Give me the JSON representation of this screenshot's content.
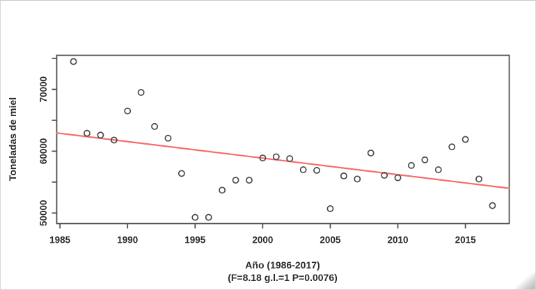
{
  "figure": {
    "description": "Scatter plot with linear trend of annual honey production"
  },
  "chart_data": {
    "type": "scatter",
    "title": "",
    "xlabel": "Año (1986-2017)",
    "xlabel_note": "(F=8.18 g.l.=1 P=0.0076)",
    "ylabel": "Toneladas de miel",
    "x": [
      1986,
      1987,
      1988,
      1989,
      1990,
      1991,
      1992,
      1993,
      1994,
      1995,
      1996,
      1997,
      1998,
      1999,
      2000,
      2001,
      2002,
      2003,
      2004,
      2005,
      2006,
      2007,
      2008,
      2009,
      2010,
      2011,
      2012,
      2013,
      2014,
      2015,
      2016,
      2017
    ],
    "y": [
      74500,
      62900,
      62600,
      61800,
      66500,
      69500,
      64000,
      62100,
      56400,
      49300,
      49300,
      53700,
      55300,
      55300,
      58900,
      59100,
      58800,
      57000,
      56900,
      50700,
      56000,
      55500,
      59700,
      56100,
      55700,
      57700,
      58600,
      57000,
      60700,
      61900,
      55500,
      51200
    ],
    "x_ticks": [
      1985,
      1990,
      1995,
      2000,
      2005,
      2010,
      2015
    ],
    "y_ticks": [
      50000,
      55000,
      60000,
      65000,
      70000,
      75000
    ],
    "y_tick_labels_shown": [
      50000,
      60000,
      70000
    ],
    "xlim": [
      1984.76,
      2018.24
    ],
    "ylim": [
      48290,
      75510
    ],
    "grid": false,
    "legend": null,
    "trend_line": {
      "x1": 1984.76,
      "y1": 62950,
      "x2": 2018.24,
      "y2": 54000
    },
    "colors": {
      "point_stroke": "#4a4a4a",
      "trend": "#f96b6b",
      "axis": "#4a4a4a",
      "text": "#2b2b2b",
      "background": "#ffffff"
    }
  }
}
